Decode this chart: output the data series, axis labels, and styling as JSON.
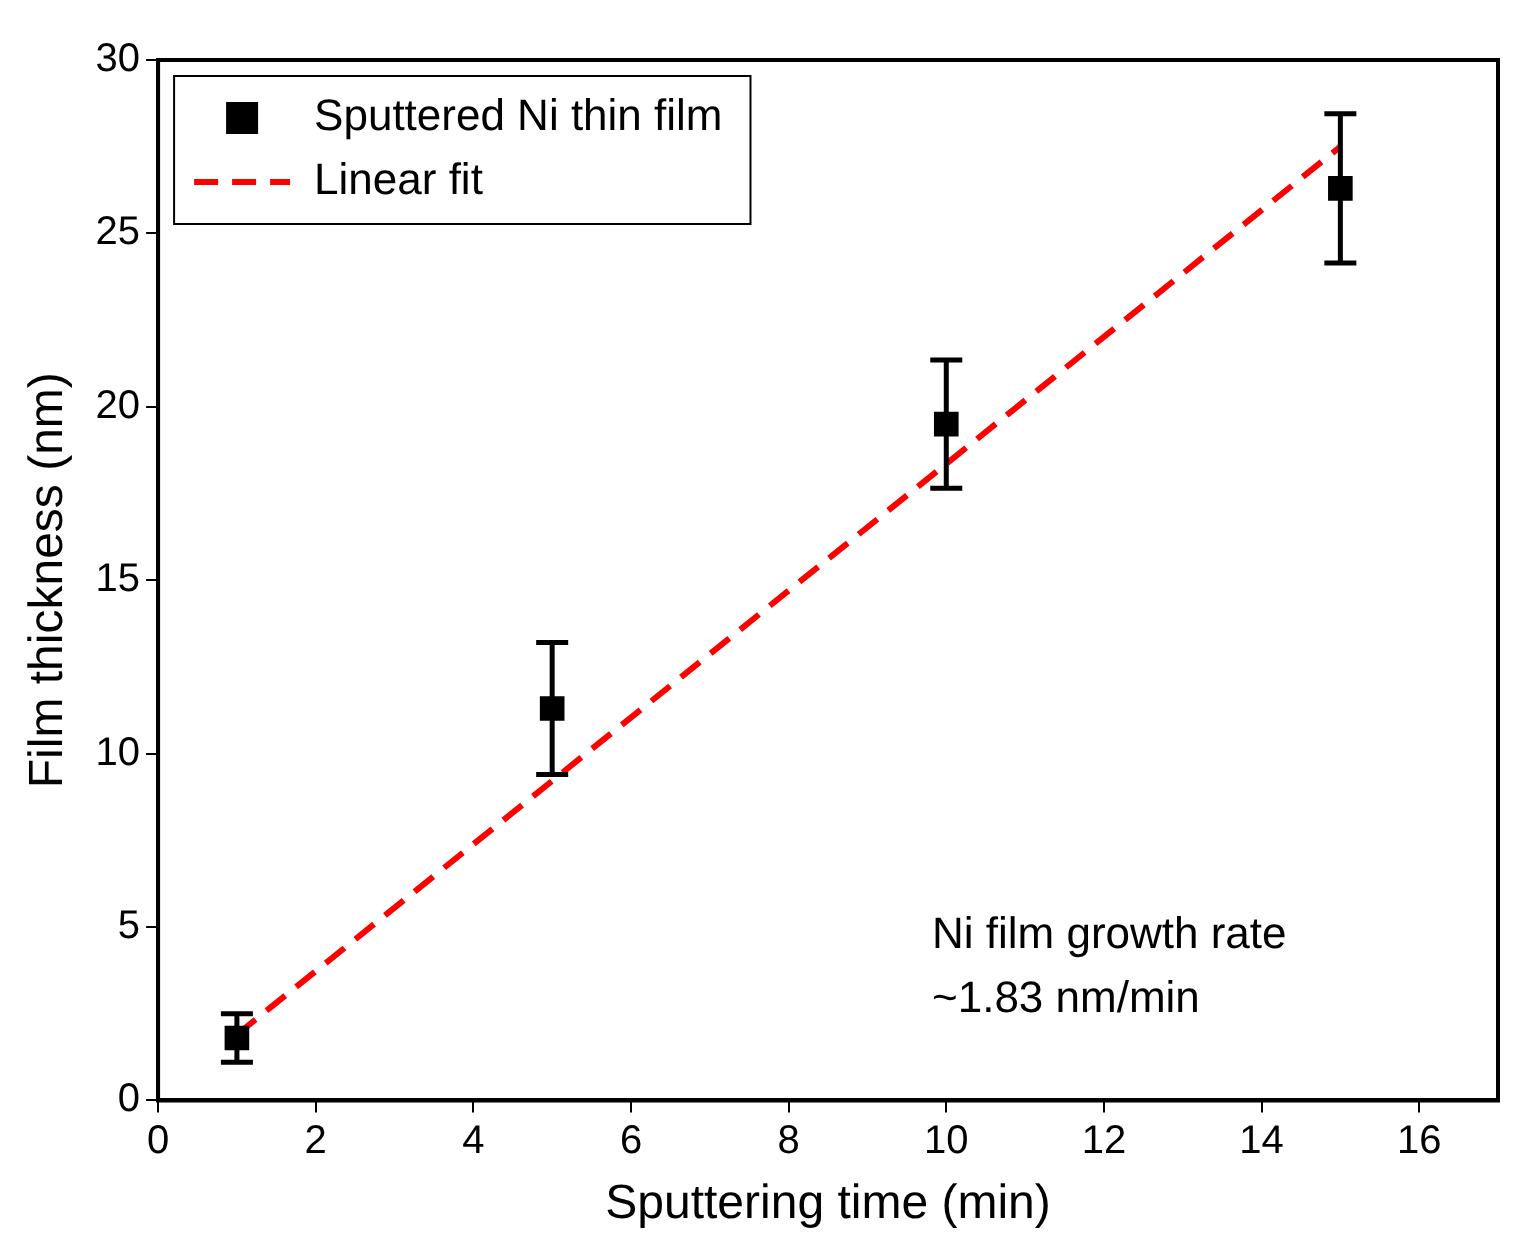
{
  "chart_data": {
    "type": "scatter",
    "xlabel": "Sputtering time (min)",
    "ylabel": "Film thickness (nm)",
    "xlim": [
      0,
      17
    ],
    "xticks": [
      0,
      2,
      4,
      6,
      8,
      10,
      12,
      14,
      16
    ],
    "ylim": [
      0,
      30
    ],
    "yticks": [
      0,
      5,
      10,
      15,
      20,
      25,
      30
    ],
    "grid": false,
    "legend": "top left",
    "series": [
      {
        "name": "Sputtered Ni thin film",
        "color": "#000000",
        "marker": "square",
        "x": [
          1,
          5,
          10,
          15
        ],
        "values": [
          1.8,
          11.3,
          19.5,
          26.3
        ],
        "errors": [
          0.7,
          1.9,
          1.85,
          2.15
        ]
      },
      {
        "name": "Linear fit",
        "color": "#ff0000",
        "type": "line",
        "marker": "none",
        "line_style": "dashed",
        "x": [
          1,
          15
        ],
        "values": [
          1.9,
          27.5
        ]
      }
    ],
    "annotations": [
      "Ni film growth rate\n~1.83 nm/min"
    ]
  }
}
